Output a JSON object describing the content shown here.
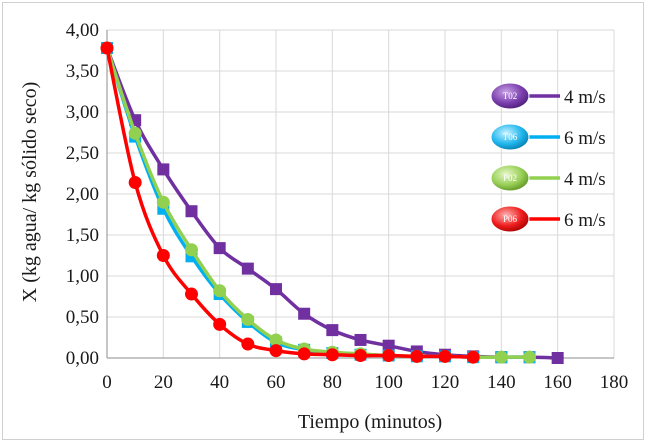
{
  "chart_data": {
    "type": "line",
    "title": "",
    "xlabel": "Tiempo (minutos)",
    "ylabel": "X (kg agua/ kg sólido seco)",
    "xlim": [
      0,
      180
    ],
    "ylim": [
      0,
      4
    ],
    "x_ticks": [
      "0",
      "20",
      "40",
      "60",
      "80",
      "100",
      "120",
      "140",
      "160",
      "180"
    ],
    "y_ticks": [
      "0,00",
      "0,50",
      "1,00",
      "1,50",
      "2,00",
      "2,50",
      "3,00",
      "3,50",
      "4,00"
    ],
    "grid": true,
    "legend_position": "right",
    "series": [
      {
        "name": "4 m/s",
        "badge": "T02",
        "color": "#7030a0",
        "marker": "square",
        "x": [
          0,
          10,
          20,
          30,
          40,
          50,
          60,
          70,
          80,
          90,
          100,
          110,
          120,
          130,
          140,
          150,
          160
        ],
        "y": [
          3.78,
          2.9,
          2.3,
          1.79,
          1.34,
          1.09,
          0.84,
          0.54,
          0.34,
          0.22,
          0.15,
          0.08,
          0.04,
          0.02,
          0.01,
          0.01,
          0.0
        ]
      },
      {
        "name": "6 m/s",
        "badge": "T06",
        "color": "#00b0f0",
        "marker": "square",
        "x": [
          0,
          10,
          20,
          30,
          40,
          50,
          60,
          70,
          80,
          90,
          100,
          110,
          120,
          130,
          140,
          150
        ],
        "y": [
          3.78,
          2.7,
          1.82,
          1.24,
          0.78,
          0.44,
          0.19,
          0.1,
          0.06,
          0.04,
          0.03,
          0.02,
          0.02,
          0.01,
          0.01,
          0.01
        ]
      },
      {
        "name": "4 m/s",
        "badge": "P02",
        "color": "#92d050",
        "marker": "circle",
        "x": [
          0,
          10,
          20,
          30,
          40,
          50,
          60,
          70,
          80,
          90,
          100,
          110,
          120,
          130,
          140,
          150
        ],
        "y": [
          3.78,
          2.74,
          1.9,
          1.32,
          0.82,
          0.47,
          0.22,
          0.11,
          0.07,
          0.05,
          0.03,
          0.02,
          0.02,
          0.01,
          0.01,
          0.01
        ]
      },
      {
        "name": "6 m/s",
        "badge": "P06",
        "color": "#ff0000",
        "marker": "circle",
        "x": [
          0,
          10,
          20,
          30,
          40,
          50,
          60,
          70,
          80,
          90,
          100,
          110,
          120,
          130
        ],
        "y": [
          3.78,
          2.14,
          1.25,
          0.78,
          0.41,
          0.17,
          0.09,
          0.05,
          0.04,
          0.03,
          0.03,
          0.02,
          0.02,
          0.01
        ]
      }
    ]
  }
}
